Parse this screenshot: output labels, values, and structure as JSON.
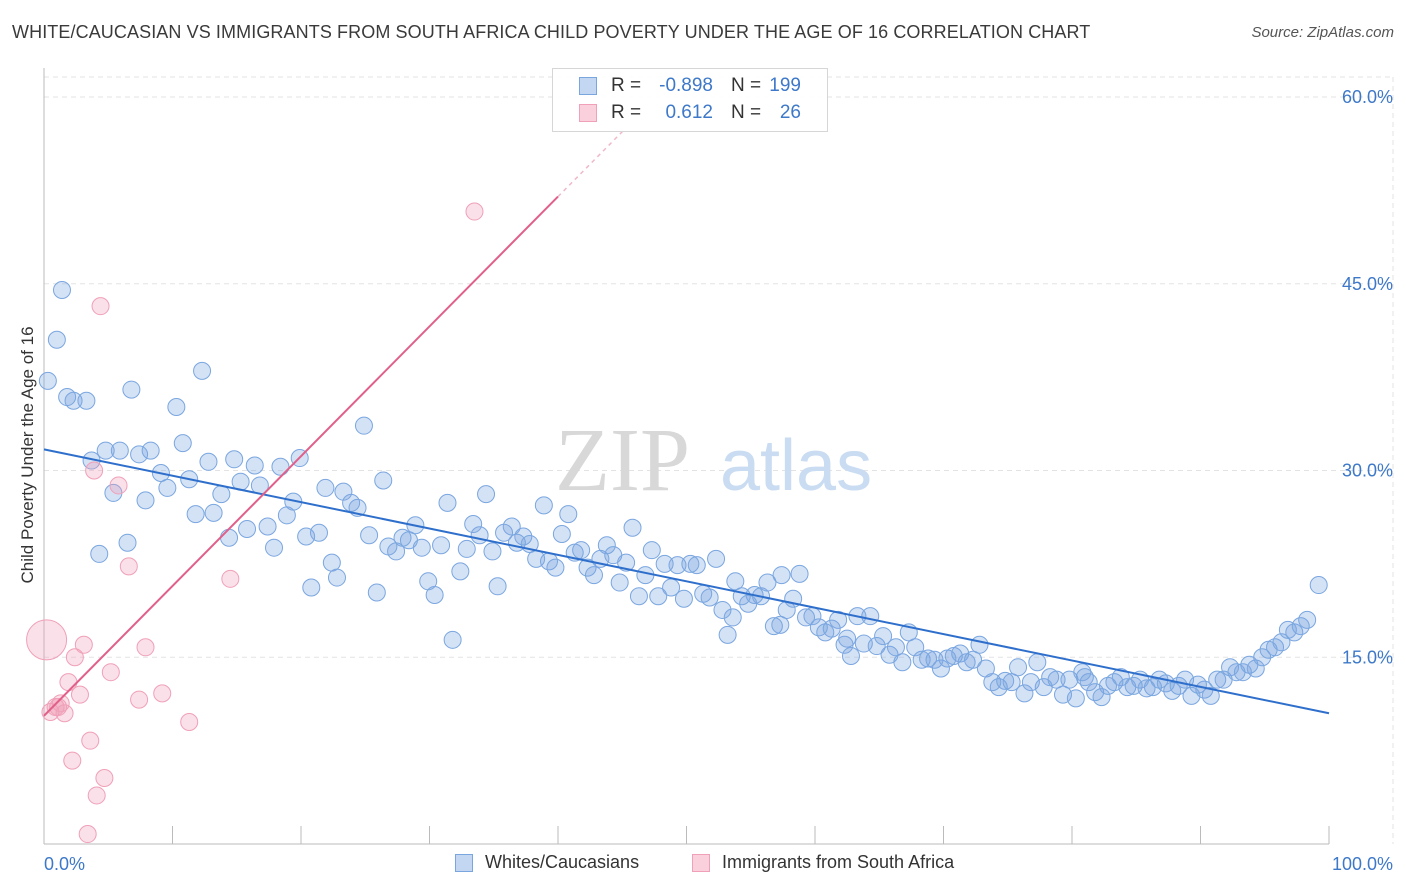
{
  "title": "WHITE/CAUCASIAN VS IMMIGRANTS FROM SOUTH AFRICA CHILD POVERTY UNDER THE AGE OF 16 CORRELATION CHART",
  "source": "Source: ZipAtlas.com",
  "watermark": {
    "zip": "ZIP",
    "atlas": "atlas"
  },
  "legend": {
    "r_label": "R =",
    "n_label": "N =",
    "rows": [
      {
        "r": "-0.898",
        "n": "199",
        "color": "#7aa6e0"
      },
      {
        "r": "0.612",
        "n": "26",
        "color": "#f0a0b8"
      }
    ]
  },
  "bottom_legend": [
    {
      "label": "Whites/Caucasians",
      "color": "#7aa6e0"
    },
    {
      "label": "Immigrants from South Africa",
      "color": "#f0a0b8"
    }
  ],
  "chart_data": {
    "type": "scatter",
    "title": "WHITE/CAUCASIAN VS IMMIGRANTS FROM SOUTH AFRICA CHILD POVERTY UNDER THE AGE OF 16 CORRELATION CHART",
    "xlabel": "",
    "ylabel": "Child Poverty Under the Age of 16",
    "xlim": [
      0,
      100
    ],
    "ylim": [
      0,
      60
    ],
    "x_tick_labels": [
      "0.0%",
      "100.0%"
    ],
    "y_ticks": [
      15,
      30,
      45,
      60
    ],
    "y_tick_labels": [
      "15.0%",
      "30.0%",
      "45.0%",
      "60.0%"
    ],
    "grid": true,
    "series": [
      {
        "name": "Whites/Caucasians",
        "color": "#7aa6e0",
        "trend_color": "#2f6fcc",
        "trend": {
          "x0": 0,
          "y0": 31.7,
          "x1": 100,
          "y1": 10.5
        },
        "points": [
          [
            0.3,
            37.2
          ],
          [
            1.4,
            44.5
          ],
          [
            1.0,
            40.5
          ],
          [
            1.8,
            35.9
          ],
          [
            2.3,
            35.6
          ],
          [
            3.3,
            35.6
          ],
          [
            3.7,
            30.8
          ],
          [
            4.3,
            23.3
          ],
          [
            4.8,
            31.6
          ],
          [
            5.4,
            28.2
          ],
          [
            5.9,
            31.6
          ],
          [
            6.5,
            24.2
          ],
          [
            6.8,
            36.5
          ],
          [
            7.4,
            31.3
          ],
          [
            7.9,
            27.6
          ],
          [
            8.3,
            31.6
          ],
          [
            9.1,
            29.8
          ],
          [
            9.6,
            28.6
          ],
          [
            10.3,
            35.1
          ],
          [
            10.8,
            32.2
          ],
          [
            11.3,
            29.3
          ],
          [
            11.8,
            26.5
          ],
          [
            12.3,
            38.0
          ],
          [
            12.8,
            30.7
          ],
          [
            13.2,
            26.6
          ],
          [
            13.8,
            28.1
          ],
          [
            14.4,
            24.6
          ],
          [
            14.8,
            30.9
          ],
          [
            15.3,
            29.1
          ],
          [
            15.8,
            25.3
          ],
          [
            16.4,
            30.4
          ],
          [
            16.8,
            28.8
          ],
          [
            17.4,
            25.5
          ],
          [
            17.9,
            23.8
          ],
          [
            18.4,
            30.3
          ],
          [
            18.9,
            26.4
          ],
          [
            19.4,
            27.5
          ],
          [
            19.9,
            31.0
          ],
          [
            20.4,
            24.7
          ],
          [
            20.8,
            20.6
          ],
          [
            21.4,
            25.0
          ],
          [
            21.9,
            28.6
          ],
          [
            22.4,
            22.6
          ],
          [
            22.8,
            21.4
          ],
          [
            23.3,
            28.3
          ],
          [
            23.9,
            27.4
          ],
          [
            24.4,
            27.0
          ],
          [
            24.9,
            33.6
          ],
          [
            25.3,
            24.8
          ],
          [
            25.9,
            20.2
          ],
          [
            26.4,
            29.2
          ],
          [
            26.8,
            23.9
          ],
          [
            27.4,
            23.5
          ],
          [
            27.9,
            24.6
          ],
          [
            28.4,
            24.4
          ],
          [
            28.9,
            25.6
          ],
          [
            29.4,
            23.8
          ],
          [
            29.9,
            21.1
          ],
          [
            30.4,
            20.0
          ],
          [
            30.9,
            24.0
          ],
          [
            31.4,
            27.4
          ],
          [
            31.8,
            16.4
          ],
          [
            32.4,
            21.9
          ],
          [
            32.9,
            23.7
          ],
          [
            33.4,
            25.7
          ],
          [
            33.9,
            24.8
          ],
          [
            34.4,
            28.1
          ],
          [
            34.9,
            23.5
          ],
          [
            35.3,
            20.7
          ],
          [
            35.8,
            25.0
          ],
          [
            36.4,
            25.5
          ],
          [
            36.8,
            24.2
          ],
          [
            37.3,
            24.7
          ],
          [
            37.8,
            24.1
          ],
          [
            38.3,
            22.9
          ],
          [
            38.9,
            27.2
          ],
          [
            39.3,
            22.7
          ],
          [
            39.8,
            22.2
          ],
          [
            40.3,
            24.9
          ],
          [
            40.8,
            26.5
          ],
          [
            41.3,
            23.4
          ],
          [
            41.8,
            23.6
          ],
          [
            42.3,
            22.2
          ],
          [
            42.8,
            21.6
          ],
          [
            43.3,
            22.9
          ],
          [
            43.8,
            24.0
          ],
          [
            44.3,
            23.2
          ],
          [
            44.8,
            21.0
          ],
          [
            45.3,
            22.6
          ],
          [
            45.8,
            25.4
          ],
          [
            46.3,
            19.9
          ],
          [
            46.8,
            21.6
          ],
          [
            47.3,
            23.6
          ],
          [
            47.8,
            19.9
          ],
          [
            48.3,
            22.5
          ],
          [
            48.8,
            20.6
          ],
          [
            49.3,
            22.4
          ],
          [
            49.8,
            19.7
          ],
          [
            50.3,
            22.5
          ],
          [
            50.8,
            22.4
          ],
          [
            51.3,
            20.1
          ],
          [
            51.8,
            19.8
          ],
          [
            52.3,
            22.9
          ],
          [
            52.8,
            18.8
          ],
          [
            53.2,
            16.8
          ],
          [
            53.8,
            21.1
          ],
          [
            54.3,
            19.9
          ],
          [
            54.8,
            19.3
          ],
          [
            55.3,
            20.0
          ],
          [
            55.8,
            19.9
          ],
          [
            56.3,
            21.0
          ],
          [
            56.8,
            17.5
          ],
          [
            57.3,
            17.6
          ],
          [
            57.8,
            18.8
          ],
          [
            58.3,
            19.7
          ],
          [
            58.8,
            21.7
          ],
          [
            59.3,
            18.2
          ],
          [
            59.8,
            18.3
          ],
          [
            60.3,
            17.4
          ],
          [
            60.8,
            17.0
          ],
          [
            61.3,
            17.3
          ],
          [
            61.8,
            18.0
          ],
          [
            62.3,
            16.0
          ],
          [
            62.8,
            15.1
          ],
          [
            63.3,
            18.3
          ],
          [
            63.8,
            16.1
          ],
          [
            64.3,
            18.3
          ],
          [
            64.8,
            15.9
          ],
          [
            65.3,
            16.7
          ],
          [
            65.8,
            15.2
          ],
          [
            66.3,
            15.8
          ],
          [
            66.8,
            14.6
          ],
          [
            67.3,
            17.0
          ],
          [
            67.8,
            15.8
          ],
          [
            68.3,
            14.8
          ],
          [
            68.8,
            14.9
          ],
          [
            69.3,
            14.8
          ],
          [
            69.8,
            14.1
          ],
          [
            70.3,
            14.9
          ],
          [
            70.8,
            15.1
          ],
          [
            71.3,
            15.3
          ],
          [
            71.8,
            14.6
          ],
          [
            72.3,
            14.8
          ],
          [
            72.8,
            16.0
          ],
          [
            73.3,
            14.1
          ],
          [
            73.8,
            13.0
          ],
          [
            74.3,
            12.6
          ],
          [
            74.8,
            13.1
          ],
          [
            75.3,
            13.0
          ],
          [
            75.8,
            14.2
          ],
          [
            76.3,
            12.1
          ],
          [
            76.8,
            13.0
          ],
          [
            77.3,
            14.6
          ],
          [
            77.8,
            12.6
          ],
          [
            78.3,
            13.4
          ],
          [
            78.8,
            13.2
          ],
          [
            79.3,
            12.0
          ],
          [
            79.8,
            13.2
          ],
          [
            80.3,
            11.7
          ],
          [
            80.8,
            13.8
          ],
          [
            81.3,
            13.0
          ],
          [
            81.8,
            12.2
          ],
          [
            82.3,
            11.8
          ],
          [
            82.8,
            12.7
          ],
          [
            83.3,
            13.0
          ],
          [
            83.8,
            13.4
          ],
          [
            84.3,
            12.6
          ],
          [
            84.8,
            12.7
          ],
          [
            85.3,
            13.2
          ],
          [
            85.8,
            12.5
          ],
          [
            86.3,
            12.6
          ],
          [
            86.8,
            13.2
          ],
          [
            87.3,
            12.9
          ],
          [
            87.8,
            12.3
          ],
          [
            88.3,
            12.7
          ],
          [
            88.8,
            13.2
          ],
          [
            89.3,
            11.9
          ],
          [
            89.8,
            12.8
          ],
          [
            90.3,
            12.4
          ],
          [
            90.8,
            11.9
          ],
          [
            91.3,
            13.2
          ],
          [
            91.8,
            13.2
          ],
          [
            92.3,
            14.2
          ],
          [
            92.8,
            13.8
          ],
          [
            93.3,
            13.8
          ],
          [
            93.8,
            14.4
          ],
          [
            94.3,
            14.1
          ],
          [
            94.8,
            15.0
          ],
          [
            95.3,
            15.6
          ],
          [
            95.8,
            15.8
          ],
          [
            96.3,
            16.2
          ],
          [
            96.8,
            17.2
          ],
          [
            97.3,
            17.0
          ],
          [
            97.8,
            17.5
          ],
          [
            98.3,
            18.0
          ],
          [
            99.2,
            20.8
          ],
          [
            57.4,
            21.6
          ],
          [
            62.5,
            16.5
          ],
          [
            53.6,
            18.2
          ],
          [
            81.0,
            13.4
          ]
        ]
      },
      {
        "name": "Immigrants from South Africa",
        "color": "#f0a0b8",
        "trend_color": "#e0608a",
        "trend": {
          "x0": 0,
          "y0": 10.3,
          "x1": 40,
          "y1": 52.0
        },
        "points": [
          [
            0.2,
            16.4
          ],
          [
            0.5,
            10.6
          ],
          [
            0.9,
            11.0
          ],
          [
            1.3,
            11.3
          ],
          [
            1.6,
            10.5
          ],
          [
            1.9,
            13.0
          ],
          [
            2.2,
            6.7
          ],
          [
            2.4,
            15.0
          ],
          [
            2.8,
            12.0
          ],
          [
            3.1,
            16.0
          ],
          [
            3.4,
            0.8
          ],
          [
            3.6,
            8.3
          ],
          [
            3.9,
            30.0
          ],
          [
            4.1,
            3.9
          ],
          [
            4.4,
            43.2
          ],
          [
            4.7,
            5.3
          ],
          [
            5.2,
            13.8
          ],
          [
            5.8,
            28.8
          ],
          [
            6.6,
            22.3
          ],
          [
            7.4,
            11.6
          ],
          [
            7.9,
            15.8
          ],
          [
            9.2,
            12.1
          ],
          [
            11.3,
            9.8
          ],
          [
            14.5,
            21.3
          ],
          [
            33.5,
            50.8
          ],
          [
            1.1,
            11.0
          ]
        ]
      }
    ]
  }
}
